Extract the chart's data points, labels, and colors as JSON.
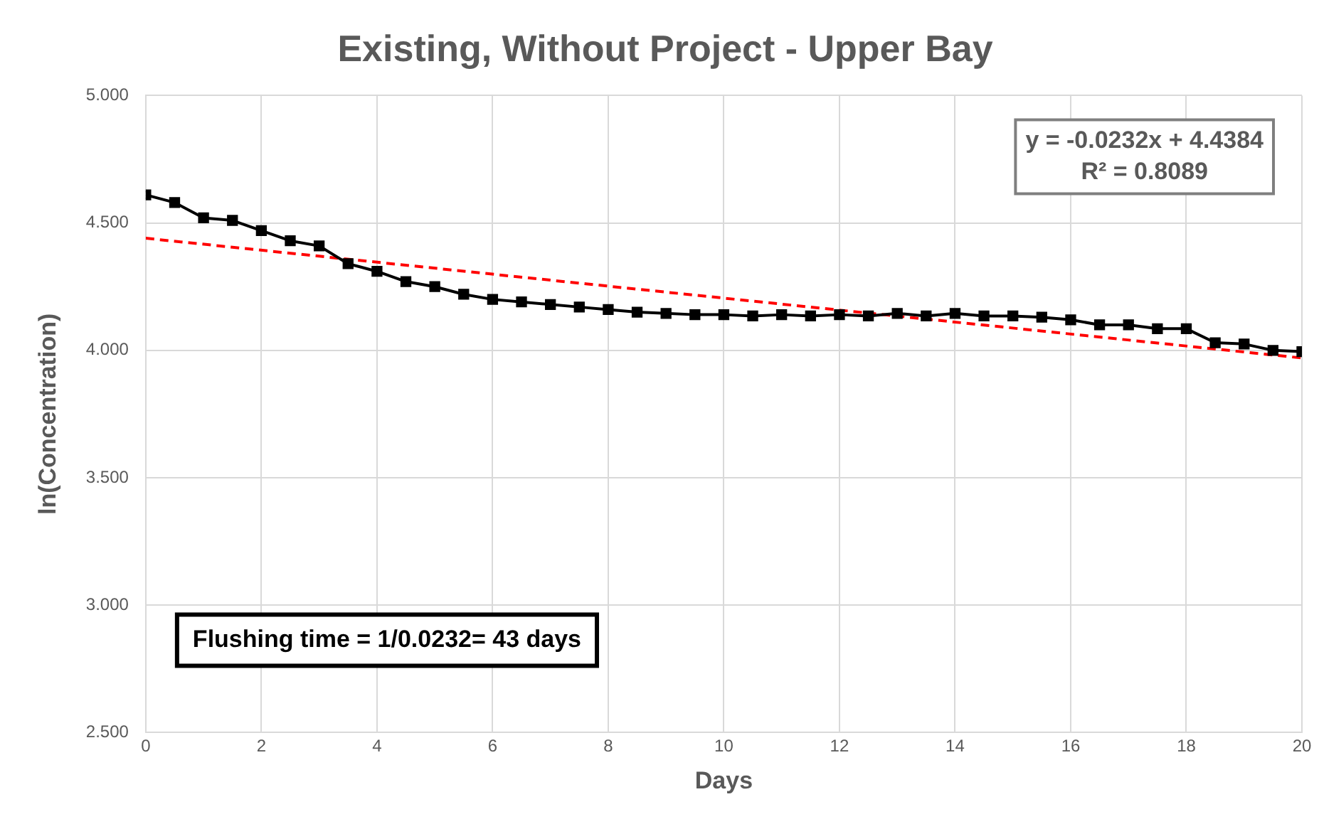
{
  "chart_data": {
    "type": "line",
    "title": "Existing, Without Project - Upper Bay",
    "xlabel": "Days",
    "ylabel": "ln(Concentration)",
    "x": [
      0,
      0.5,
      1,
      1.5,
      2,
      2.5,
      3,
      3.5,
      4,
      4.5,
      5,
      5.5,
      6,
      6.5,
      7,
      7.5,
      8,
      8.5,
      9,
      9.5,
      10,
      10.5,
      11,
      11.5,
      12,
      12.5,
      13,
      13.5,
      14,
      14.5,
      15,
      15.5,
      16,
      16.5,
      17,
      17.5,
      18,
      18.5,
      19,
      19.5,
      20
    ],
    "series": [
      {
        "color": "#000000",
        "marker": "square",
        "line_style": "solid",
        "values": [
          4.61,
          4.58,
          4.52,
          4.51,
          4.47,
          4.43,
          4.41,
          4.34,
          4.31,
          4.27,
          4.25,
          4.22,
          4.2,
          4.19,
          4.18,
          4.17,
          4.16,
          4.15,
          4.145,
          4.14,
          4.14,
          4.135,
          4.14,
          4.135,
          4.14,
          4.135,
          4.145,
          4.135,
          4.145,
          4.135,
          4.135,
          4.13,
          4.12,
          4.1,
          4.1,
          4.085,
          4.085,
          4.03,
          4.025,
          4.0,
          3.995
        ]
      },
      {
        "type": "line",
        "color": "#ff0000",
        "marker": "none",
        "line_style": "dashed",
        "x": [
          0,
          20
        ],
        "values": [
          4.44,
          3.97
        ]
      }
    ],
    "xlim": [
      0,
      20
    ],
    "xticks": [
      0,
      2,
      4,
      6,
      8,
      10,
      12,
      14,
      16,
      18,
      20
    ],
    "ylim": [
      2.5,
      5
    ],
    "yticks": [
      {
        "value": 2.5,
        "label": "2.500"
      },
      {
        "value": 3,
        "label": "3.000"
      },
      {
        "value": 3.5,
        "label": "3.500"
      },
      {
        "value": 4,
        "label": "4.000"
      },
      {
        "value": 4.5,
        "label": "4.500"
      },
      {
        "value": 5,
        "label": "5.000"
      }
    ],
    "grid": true,
    "legend": false,
    "annotations": [
      "y = -0.0232x + 4.4384\nR² = 0.8089",
      "Flushing time = 1/0.0232= 43 days"
    ]
  }
}
